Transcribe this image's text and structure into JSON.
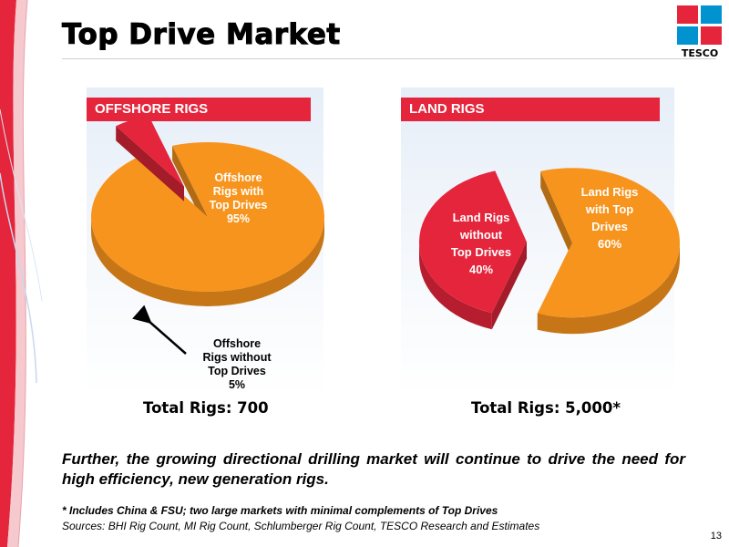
{
  "slide": {
    "title": "Top Drive Market",
    "page_number": "13"
  },
  "logo": {
    "text": "TESCO",
    "colors": {
      "red": "#e4253b",
      "blue": "#0093d0"
    }
  },
  "chart_data": [
    {
      "type": "pie",
      "title": "OFFSHORE RIGS",
      "slices": [
        {
          "label_lines": [
            "Offshore",
            "Rigs with",
            "Top Drives",
            "95%"
          ],
          "value": 95,
          "color": "#f7941d",
          "exploded": false
        },
        {
          "label_lines": [
            "Offshore",
            "Rigs without",
            "Top Drives",
            "5%"
          ],
          "value": 5,
          "color": "#e4253b",
          "exploded": true
        }
      ],
      "total_label": "Total Rigs: 700"
    },
    {
      "type": "pie",
      "title": "LAND RIGS",
      "slices": [
        {
          "label_lines": [
            "Land Rigs",
            "with Top",
            "Drives",
            "60%"
          ],
          "value": 60,
          "color": "#f7941d",
          "exploded": true
        },
        {
          "label_lines": [
            "Land Rigs",
            "without",
            "Top Drives",
            "40%"
          ],
          "value": 40,
          "color": "#e4253b",
          "exploded": true
        }
      ],
      "total_label": "Total Rigs: 5,000*"
    }
  ],
  "body_text": "Further, the growing directional drilling market will continue to drive the need for high efficiency, new generation rigs.",
  "footnote": "* Includes China & FSU; two large markets with minimal complements of Top Drives",
  "sources": "Sources: BHI Rig Count, MI Rig Count, Schlumberger Rig Count, TESCO Research and Estimates"
}
